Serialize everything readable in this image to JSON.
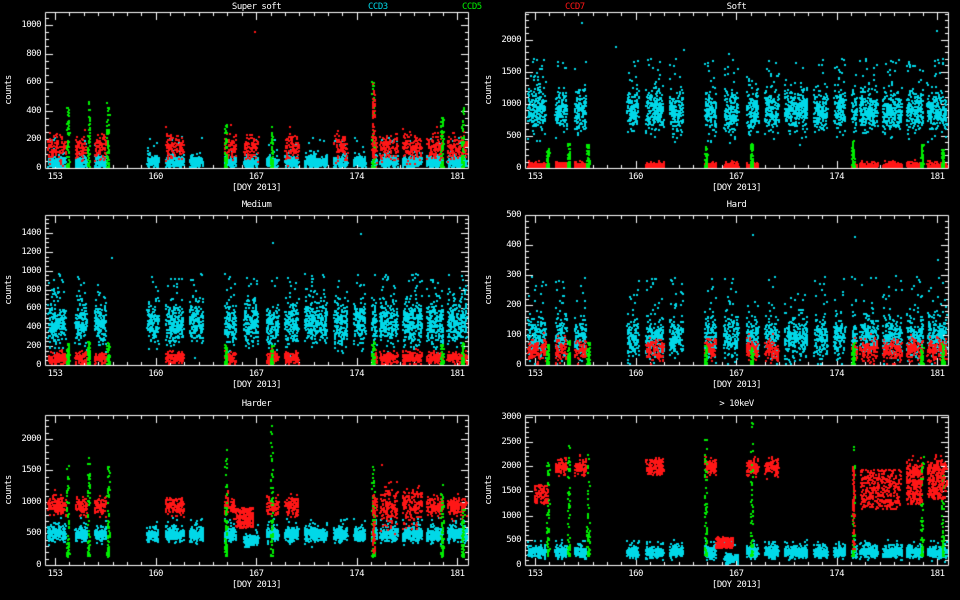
{
  "app": {
    "background": "#000000"
  },
  "colors": {
    "axis": "#ffffff",
    "text": "#ffffff",
    "ccd3": "#00d8e8",
    "ccd5": "#00ee00",
    "ccd7": "#ff1616"
  },
  "legend": [
    {
      "label": "CCD3",
      "series": "ccd3"
    },
    {
      "label": "CCD5",
      "series": "ccd5"
    },
    {
      "label": "CCD7",
      "series": "ccd7"
    }
  ],
  "chart_data": {
    "type": "scatter",
    "seed": 20130601,
    "x_axis": {
      "label": "[DOY 2013]",
      "ticks": [
        153,
        160,
        167,
        174,
        181
      ],
      "range": [
        152.3,
        181.75
      ],
      "minor_step": 1
    },
    "series_names": [
      "CCD3",
      "CCD5",
      "CCD7"
    ],
    "windows": [
      [
        152.45,
        153.7
      ],
      [
        154.35,
        155.15
      ],
      [
        155.7,
        156.5
      ],
      [
        159.35,
        160.15
      ],
      [
        160.65,
        161.9
      ],
      [
        162.3,
        163.25
      ],
      [
        164.75,
        165.55
      ],
      [
        166.1,
        167.1
      ],
      [
        167.65,
        168.5
      ],
      [
        168.95,
        169.9
      ],
      [
        170.3,
        171.9
      ],
      [
        172.35,
        173.3
      ],
      [
        173.75,
        174.55
      ],
      [
        175.0,
        175.35
      ],
      [
        175.55,
        176.8
      ],
      [
        177.15,
        178.5
      ],
      [
        178.8,
        179.95
      ],
      [
        180.25,
        181.6
      ]
    ],
    "green_spike_x": [
      153.85,
      155.3,
      156.65,
      164.85,
      168.05,
      175.1,
      179.9,
      181.35
    ],
    "panels": [
      {
        "key": "super-soft",
        "title": "Super soft",
        "ylabel": "counts",
        "xlabel": "[DOY 2013]",
        "yticks": [
          0,
          200,
          400,
          600,
          800,
          1000
        ],
        "ylim": [
          0,
          1090
        ],
        "y_minor_step": 50,
        "ccd3": {
          "mean": 48,
          "sd": 20,
          "n_per_day": 150,
          "tail_frac": 0.05,
          "tail_max": 230,
          "overrides": {}
        },
        "ccd7": {
          "mean": 150,
          "sd": 45,
          "n_per_day": 90,
          "windows": [
            0,
            1,
            2,
            4,
            6,
            7,
            9,
            11,
            13,
            14,
            15,
            16,
            17
          ],
          "overrides": {}
        },
        "ccd5": {
          "base": 10,
          "n_per_spike": 60,
          "spike_tops": [
            430,
            490,
            460,
            350,
            320,
            640,
            370,
            430
          ]
        },
        "extras": [
          {
            "series": "ccd7",
            "x": [
              175.03,
              175.22
            ],
            "y": [
              80,
              600
            ],
            "n": 70,
            "power": 1.7
          }
        ],
        "outliers": [
          {
            "series": "ccd7",
            "x": 166.85,
            "y": 960
          }
        ]
      },
      {
        "key": "soft",
        "title": "Soft",
        "ylabel": "counts",
        "xlabel": "[DOY 2013]",
        "yticks": [
          0,
          500,
          1000,
          1500,
          2000
        ],
        "ylim": [
          0,
          2430
        ],
        "y_minor_step": 100,
        "ccd3": {
          "mean": 900,
          "sd": 160,
          "n_per_day": 175,
          "tail_frac": 0.05,
          "tail_max": 1720,
          "overrides": {}
        },
        "ccd7": {
          "mean": 45,
          "sd": 28,
          "n_per_day": 120,
          "windows": [
            0,
            1,
            2,
            4,
            6,
            7,
            8,
            13,
            14,
            15,
            16,
            17
          ],
          "overrides": {}
        },
        "ccd5": {
          "base": 15,
          "n_per_spike": 55,
          "spike_tops": [
            320,
            420,
            380,
            340,
            400,
            440,
            380,
            300
          ]
        },
        "extras": [],
        "outliers": [
          {
            "series": "ccd3",
            "x": 156.2,
            "y": 2280
          },
          {
            "series": "ccd3",
            "x": 158.6,
            "y": 1900
          },
          {
            "series": "ccd3",
            "x": 163.3,
            "y": 1850
          },
          {
            "series": "ccd3",
            "x": 166.4,
            "y": 1790
          },
          {
            "series": "ccd3",
            "x": 171.1,
            "y": 1650
          },
          {
            "series": "ccd3",
            "x": 180.9,
            "y": 2150
          },
          {
            "series": "ccd3",
            "x": 181.35,
            "y": 1720
          }
        ]
      },
      {
        "key": "medium",
        "title": "Medium",
        "ylabel": "counts",
        "xlabel": "[DOY 2013]",
        "yticks": [
          0,
          200,
          400,
          600,
          800,
          1000,
          1200,
          1400
        ],
        "ylim": [
          0,
          1590
        ],
        "y_minor_step": 50,
        "ccd3": {
          "mean": 450,
          "sd": 115,
          "n_per_day": 175,
          "tail_frac": 0.06,
          "tail_max": 980,
          "overrides": {}
        },
        "ccd7": {
          "mean": 85,
          "sd": 32,
          "n_per_day": 100,
          "windows": [
            0,
            1,
            2,
            4,
            6,
            8,
            9,
            13,
            14,
            15,
            16,
            17
          ],
          "overrides": {}
        },
        "ccd5": {
          "base": 10,
          "n_per_spike": 55,
          "spike_tops": [
            240,
            260,
            250,
            230,
            220,
            260,
            230,
            250
          ]
        },
        "extras": [],
        "outliers": [
          {
            "series": "ccd3",
            "x": 156.9,
            "y": 1150
          },
          {
            "series": "ccd3",
            "x": 168.1,
            "y": 1300
          },
          {
            "series": "ccd3",
            "x": 174.2,
            "y": 1395
          }
        ]
      },
      {
        "key": "hard",
        "title": "Hard",
        "ylabel": "counts",
        "xlabel": "[DOY 2013]",
        "yticks": [
          0,
          100,
          200,
          300,
          400,
          500
        ],
        "ylim": [
          0,
          500
        ],
        "y_minor_step": 20,
        "ccd3": {
          "mean": 95,
          "sd": 33,
          "n_per_day": 155,
          "tail_frac": 0.07,
          "tail_max": 300,
          "overrides": {}
        },
        "ccd7": {
          "mean": 52,
          "sd": 18,
          "n_per_day": 95,
          "windows": [
            0,
            1,
            2,
            4,
            6,
            8,
            9,
            13,
            14,
            15,
            16,
            17
          ],
          "overrides": {}
        },
        "ccd5": {
          "base": 5,
          "n_per_spike": 50,
          "spike_tops": [
            75,
            85,
            80,
            70,
            65,
            80,
            70,
            80
          ]
        },
        "extras": [],
        "outliers": [
          {
            "series": "ccd3",
            "x": 168.1,
            "y": 437
          },
          {
            "series": "ccd3",
            "x": 175.2,
            "y": 430
          },
          {
            "series": "ccd3",
            "x": 181.0,
            "y": 355
          }
        ]
      },
      {
        "key": "harder",
        "title": "Harder",
        "ylabel": "counts",
        "xlabel": "[DOY 2013]",
        "yticks": [
          0,
          500,
          1000,
          1500,
          2000
        ],
        "ylim": [
          0,
          2380
        ],
        "y_minor_step": 100,
        "ccd3": {
          "mean": 500,
          "sd": 55,
          "n_per_day": 160,
          "tail_frac": 0.04,
          "tail_max": 760,
          "overrides": {
            "7": [
              410,
              45
            ]
          }
        },
        "ccd7": {
          "mean": 950,
          "sd": 75,
          "n_per_day": 105,
          "windows": [
            0,
            1,
            2,
            4,
            6,
            8,
            9,
            13,
            14,
            15,
            16,
            17
          ],
          "overrides": {
            "14": [
              950,
              170
            ],
            "15": [
              950,
              170
            ]
          }
        },
        "ccd5": {
          "base": 150,
          "n_per_spike": 60,
          "spike_tops": [
            1600,
            1750,
            1650,
            1850,
            2250,
            1600,
            1350,
            900
          ]
        },
        "extras": [
          {
            "series": "ccd7",
            "x": [
              165.55,
              166.75
            ],
            "y": [
              600,
              920
            ],
            "n": 220
          },
          {
            "series": "ccd7",
            "x": [
              175.03,
              175.22
            ],
            "y": [
              200,
              1150
            ],
            "n": 60
          }
        ],
        "outliers": []
      },
      {
        "key": "gt10kev",
        "title": "> 10keV",
        "ylabel": "counts",
        "xlabel": "[DOY 2013]",
        "yticks": [
          0,
          500,
          1000,
          1500,
          2000,
          2500,
          3000
        ],
        "ylim": [
          0,
          3040
        ],
        "y_minor_step": 100,
        "ccd3": {
          "mean": 280,
          "sd": 60,
          "n_per_day": 150,
          "tail_frac": 0.04,
          "tail_max": 520,
          "overrides": {
            "7": [
              160,
              40
            ]
          }
        },
        "ccd7": {
          "mean": 2000,
          "sd": 85,
          "n_per_day": 110,
          "windows": [
            1,
            2,
            4,
            6,
            8,
            9,
            16,
            17
          ],
          "overrides": {
            "16": [
              1900,
              120
            ],
            "17": [
              1950,
              120
            ]
          }
        },
        "ccd5": {
          "base": 200,
          "n_per_spike": 55,
          "spike_tops": [
            2100,
            2450,
            2250,
            2700,
            2950,
            2450,
            2300,
            1900
          ]
        },
        "extras": [
          {
            "series": "ccd7",
            "x": [
              152.9,
              153.9
            ],
            "y": [
              1250,
              1650
            ],
            "n": 90
          },
          {
            "series": "ccd7",
            "x": [
              165.5,
              166.75
            ],
            "y": [
              360,
              580
            ],
            "n": 170
          },
          {
            "series": "ccd7",
            "x": [
              175.05,
              175.2
            ],
            "y": [
              300,
              2050
            ],
            "n": 70
          },
          {
            "series": "ccd7",
            "x": [
              175.6,
              178.4
            ],
            "y": [
              1150,
              1950
            ],
            "n": 380
          },
          {
            "series": "ccd7",
            "x": [
              178.8,
              179.9
            ],
            "y": [
              1250,
              1750
            ],
            "n": 140
          },
          {
            "series": "ccd7",
            "x": [
              180.3,
              181.6
            ],
            "y": [
              1350,
              1800
            ],
            "n": 150
          }
        ],
        "outliers": []
      }
    ]
  }
}
